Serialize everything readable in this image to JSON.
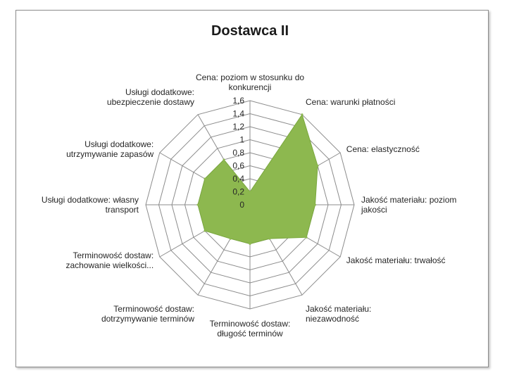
{
  "chart_data": {
    "type": "radar",
    "title": "Dostawca II",
    "rmin": 0,
    "rmax": 1.6,
    "ticks": [
      "0",
      "0,2",
      "0,4",
      "0,6",
      "0,8",
      "1",
      "1,2",
      "1,4",
      "1,6"
    ],
    "fill_color": "#8db84f",
    "grid_color": "#8c8c8c",
    "categories": [
      [
        "Cena: poziom w stosunku do",
        "konkurencji"
      ],
      [
        "Cena: warunki płatności"
      ],
      [
        "Cena: elastyczność"
      ],
      [
        "Jakość materiału: poziom",
        "jakości"
      ],
      [
        "Jakość materiału: trwałość"
      ],
      [
        "Jakość materiału:",
        "niezawodność"
      ],
      [
        "Terminowość dostaw:",
        "długość terminów"
      ],
      [
        "Terminowość dostaw:",
        "dotrzymywanie terminów"
      ],
      [
        "Terminowość dostaw:",
        "zachowanie wielkości..."
      ],
      [
        "Usługi dodatkowe: własny",
        "transport"
      ],
      [
        "Usługi dodatkowe:",
        "utrzymywanie zapasów"
      ],
      [
        "Usługi dodatkowe:",
        "ubezpieczenie dostawy"
      ]
    ],
    "series": [
      {
        "name": "Dostawca II",
        "values": [
          0.2,
          1.6,
          1.2,
          1.0,
          1.0,
          0.6,
          0.6,
          0.6,
          0.8,
          0.8,
          0.8,
          0.8
        ]
      }
    ]
  }
}
